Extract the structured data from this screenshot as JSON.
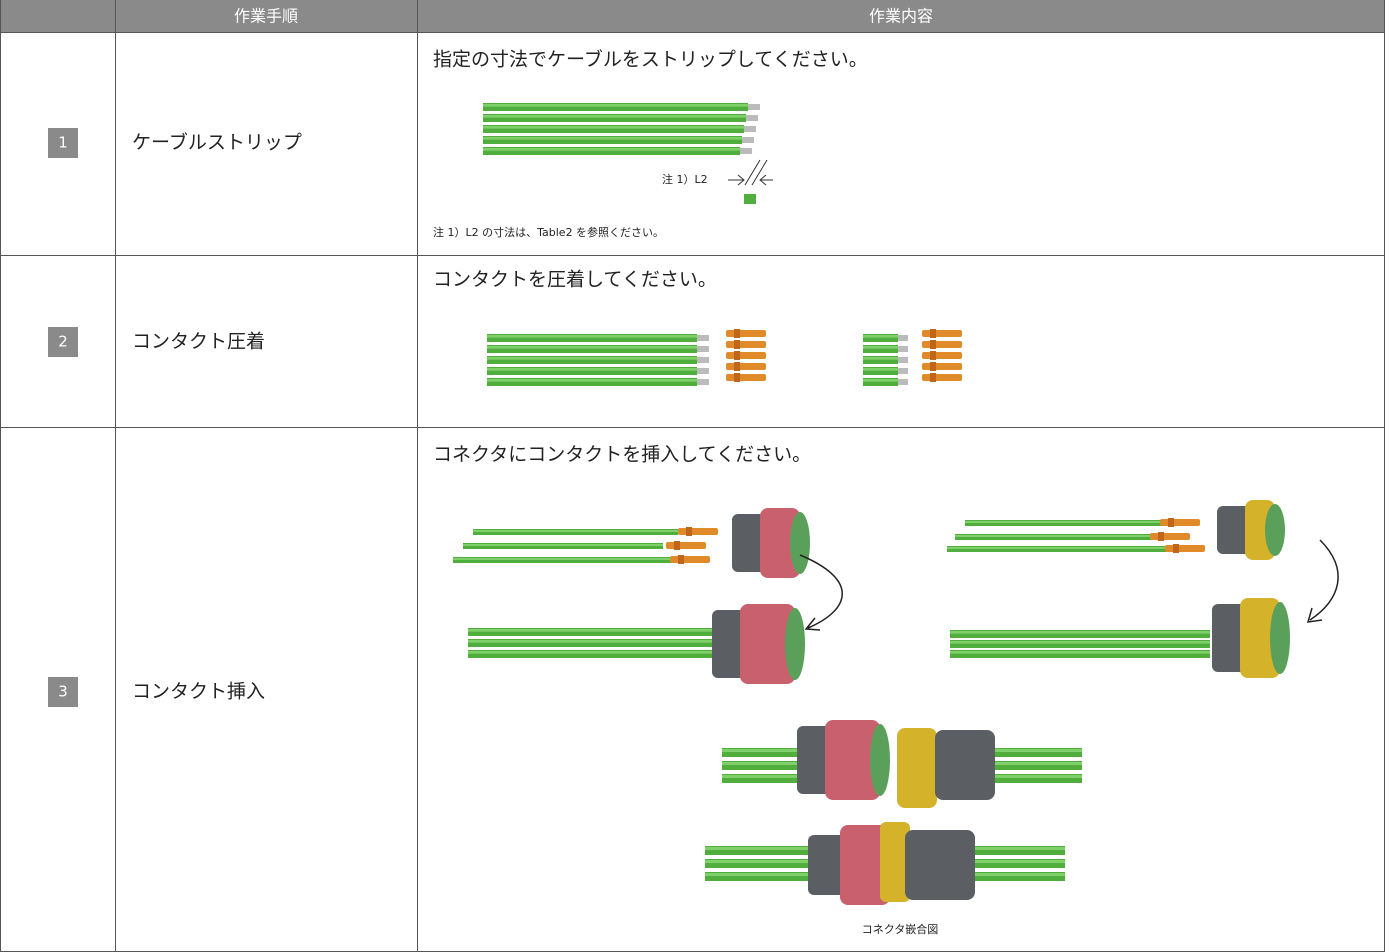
{
  "header": [
    "作業手順",
    "作業内容"
  ],
  "rows": [
    {
      "number": "1",
      "step": "ケーブルストリップ",
      "instruction": "指定の寸法でケーブルをストリップしてください。",
      "figure_label": "注 1）L2",
      "note": "注 1）L2 の寸法は、Table2 を参照ください。"
    },
    {
      "number": "2",
      "step": "コンタクト圧着",
      "instruction": "コンタクトを圧着してください。"
    },
    {
      "number": "3",
      "step": "コンタクト挿入",
      "instruction": "コネクタにコンタクトを挿入してください。",
      "caption": "コネクタ嵌合図"
    }
  ]
}
